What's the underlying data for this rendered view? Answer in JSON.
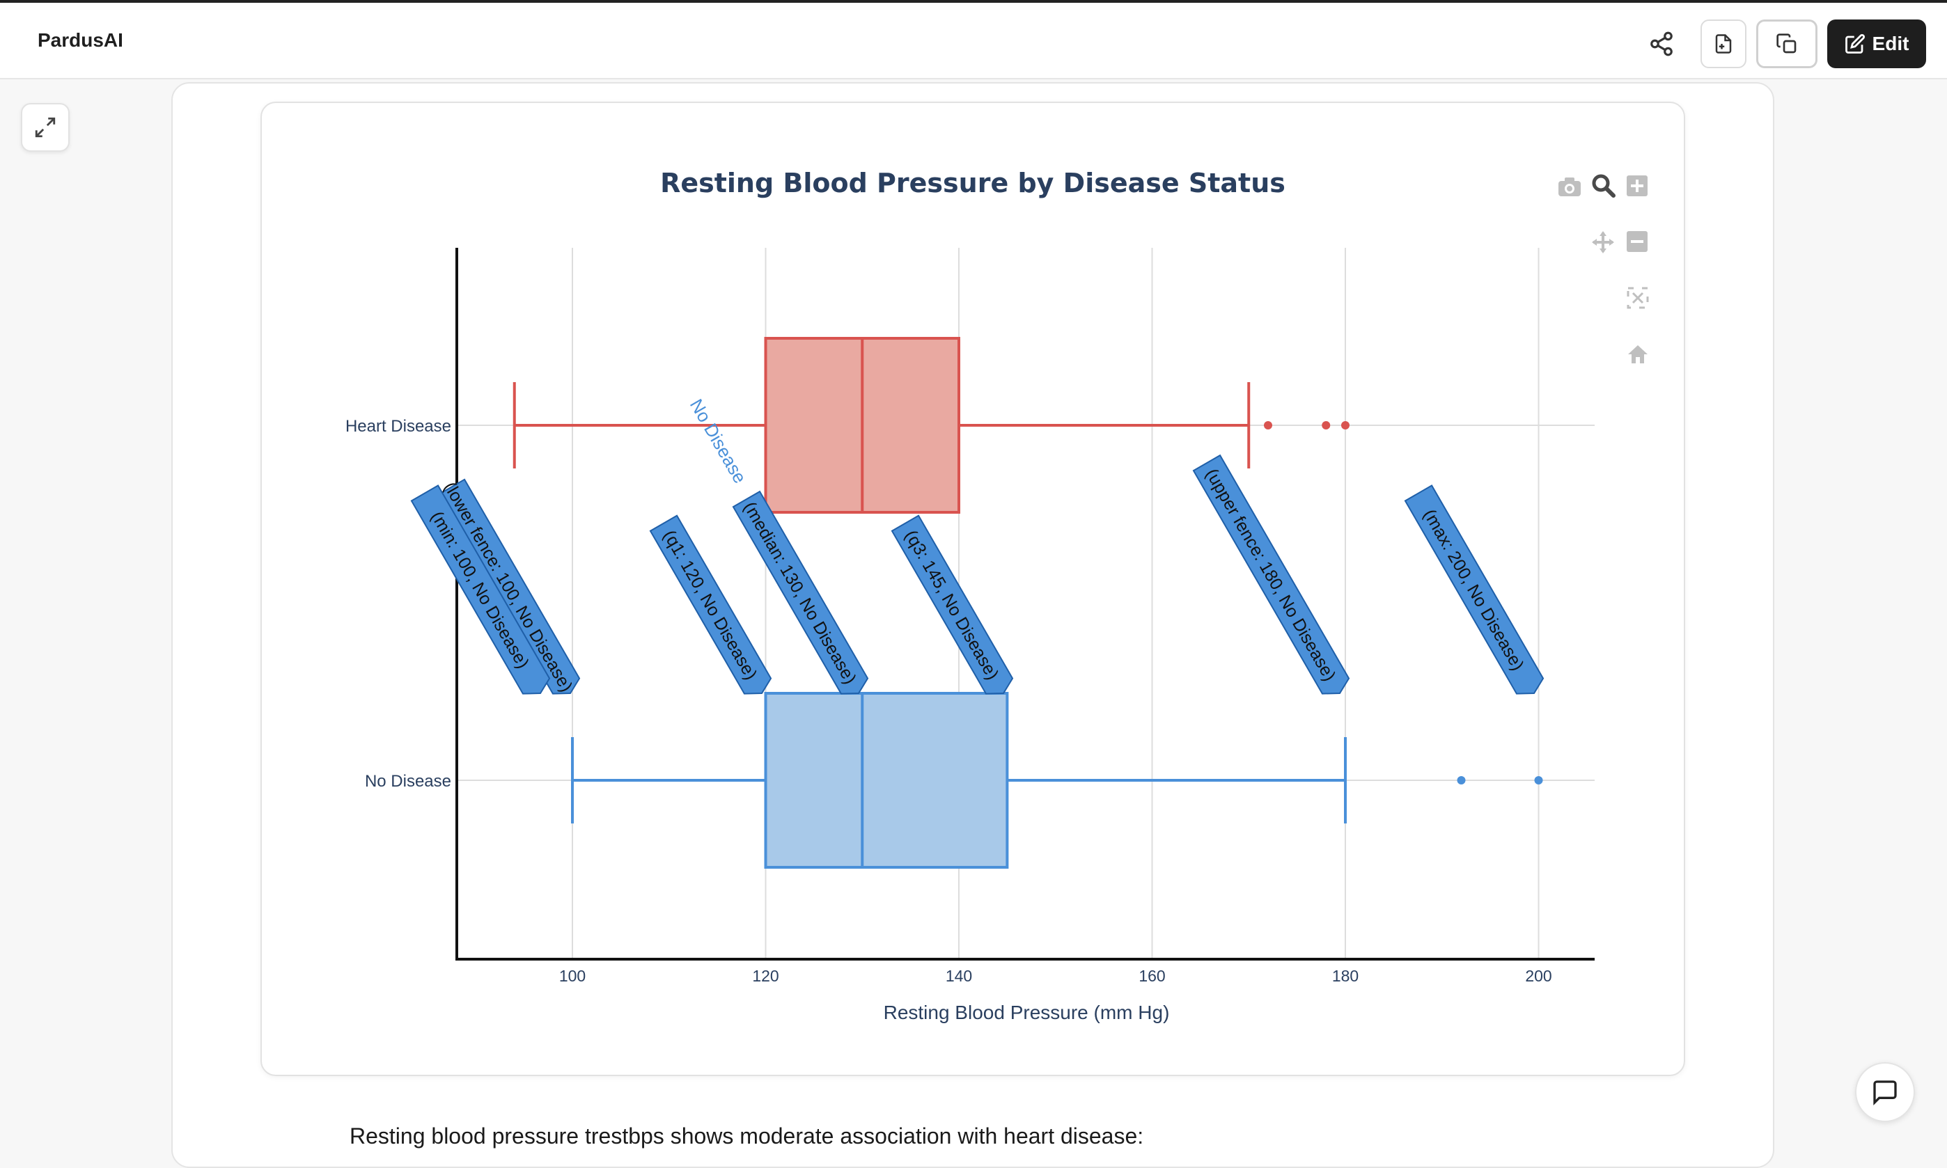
{
  "app": {
    "name": "PardusAI"
  },
  "toolbar": {
    "share_icon": "share-icon",
    "file_icon": "file-icon",
    "copy_icon": "copy-icon",
    "edit_label": "Edit",
    "edit_icon": "edit-icon"
  },
  "content": {
    "paragraph": "Resting blood pressure trestbps shows moderate association with heart disease:"
  },
  "colors": {
    "heart": "#d9534f",
    "heart_fill": "#e9a9a1",
    "nodis": "#4a90d9",
    "nodis_fill": "#a8c9e9",
    "title": "#2a3f5f"
  },
  "chart_data": {
    "type": "box",
    "orientation": "horizontal",
    "title": "Resting Blood Pressure by Disease Status",
    "xlabel": "Resting Blood Pressure (mm Hg)",
    "ylabel": "",
    "xlim": [
      88,
      206
    ],
    "xticks": [
      100,
      120,
      140,
      160,
      180,
      200
    ],
    "categories": [
      "Heart Disease",
      "No Disease"
    ],
    "series": [
      {
        "name": "Heart Disease",
        "lower_fence": 94,
        "q1": 120,
        "median": 130,
        "q3": 140,
        "upper_fence": 170,
        "outliers": [
          172,
          178,
          180
        ]
      },
      {
        "name": "No Disease",
        "lower_fence": 100,
        "q1": 120,
        "median": 130,
        "q3": 145,
        "upper_fence": 180,
        "outliers": [
          192,
          200
        ]
      }
    ],
    "hover": {
      "trace_label": "No Disease",
      "labels": [
        "(lower fence: 100, No Disease)",
        "(min: 100, No Disease)",
        "(q1: 120, No Disease)",
        "(median: 130, No Disease)",
        "(q3: 145, No Disease)",
        "(upper fence: 180, No Disease)",
        "(max: 200, No Disease)"
      ]
    },
    "modebar": [
      "camera-icon",
      "zoom-icon",
      "zoom-in-icon",
      "pan-icon",
      "zoom-out-icon",
      "autoscale-icon",
      "reset-axes-icon"
    ]
  }
}
